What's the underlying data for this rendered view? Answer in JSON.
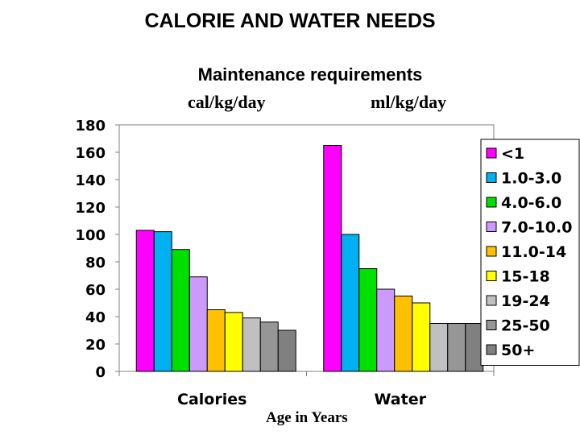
{
  "chart_data": {
    "type": "bar",
    "title": "CALORIE AND WATER NEEDS",
    "subtitle": "Maintenance requirements",
    "unit_labels": [
      "cal/kg/day",
      "ml/kg/day"
    ],
    "xlabel": "Age in Years",
    "ylabel": "",
    "ylim": [
      0,
      180
    ],
    "yticks": [
      0,
      20,
      40,
      60,
      80,
      100,
      120,
      140,
      160,
      180
    ],
    "grid": false,
    "legend_position": "right",
    "categories": [
      "Calories",
      "Water"
    ],
    "series": [
      {
        "name": "<1",
        "color": "#FF00FF",
        "values": [
          103,
          165
        ]
      },
      {
        "name": "1.0-3.0",
        "color": "#00B0F0",
        "values": [
          102,
          100
        ]
      },
      {
        "name": "4.0-6.0",
        "color": "#00E000",
        "values": [
          89,
          75
        ]
      },
      {
        "name": "7.0-10.0",
        "color": "#CC99FF",
        "values": [
          69,
          60
        ]
      },
      {
        "name": "11.0-14",
        "color": "#FFC000",
        "values": [
          45,
          55
        ]
      },
      {
        "name": "15-18",
        "color": "#FFFF00",
        "values": [
          43,
          50
        ]
      },
      {
        "name": "19-24",
        "color": "#C0C0C0",
        "values": [
          39,
          35
        ]
      },
      {
        "name": "25-50",
        "color": "#969696",
        "values": [
          36,
          35
        ]
      },
      {
        "name": "50+",
        "color": "#808080",
        "values": [
          30,
          35
        ]
      }
    ]
  }
}
